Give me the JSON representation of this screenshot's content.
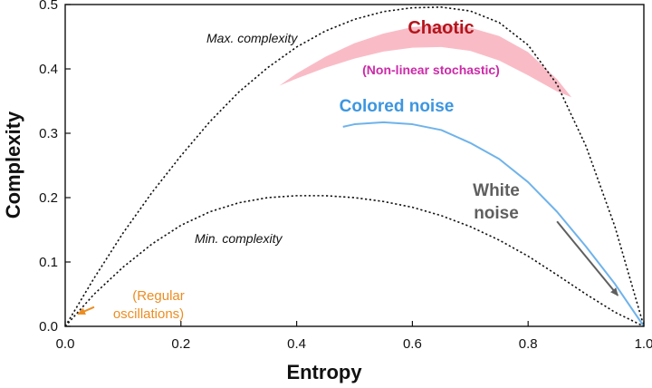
{
  "chart_data": {
    "type": "line",
    "xlabel": "Entropy",
    "ylabel": "Complexity",
    "xlim": [
      0,
      1
    ],
    "ylim": [
      0,
      0.5
    ],
    "xticks": [
      "0.0",
      "0.2",
      "0.4",
      "0.6",
      "0.8",
      "1.0"
    ],
    "yticks": [
      "0.0",
      "0.1",
      "0.2",
      "0.3",
      "0.4",
      "0.5"
    ],
    "grid": false,
    "legend": "none",
    "series": [
      {
        "name": "Max. complexity",
        "style": "dotted",
        "color": "#111111",
        "x": [
          0,
          0.05,
          0.1,
          0.15,
          0.2,
          0.25,
          0.3,
          0.35,
          0.4,
          0.45,
          0.5,
          0.55,
          0.6,
          0.65,
          0.7,
          0.75,
          0.8,
          0.85,
          0.9,
          0.95,
          1.0
        ],
        "y": [
          0,
          0.075,
          0.145,
          0.208,
          0.265,
          0.318,
          0.364,
          0.402,
          0.434,
          0.459,
          0.477,
          0.489,
          0.495,
          0.496,
          0.49,
          0.472,
          0.437,
          0.376,
          0.28,
          0.155,
          0
        ]
      },
      {
        "name": "Min. complexity",
        "style": "dotted",
        "color": "#111111",
        "x": [
          0,
          0.05,
          0.1,
          0.15,
          0.2,
          0.25,
          0.3,
          0.35,
          0.4,
          0.45,
          0.5,
          0.55,
          0.6,
          0.65,
          0.7,
          0.75,
          0.8,
          0.85,
          0.9,
          0.95,
          1.0
        ],
        "y": [
          0,
          0.05,
          0.092,
          0.128,
          0.157,
          0.178,
          0.192,
          0.2,
          0.203,
          0.203,
          0.2,
          0.194,
          0.185,
          0.172,
          0.155,
          0.134,
          0.109,
          0.08,
          0.05,
          0.022,
          0
        ]
      },
      {
        "name": "Colored noise",
        "style": "solid",
        "color": "#6fb3ea",
        "x": [
          0.48,
          0.5,
          0.55,
          0.6,
          0.65,
          0.7,
          0.75,
          0.8,
          0.85,
          0.9,
          0.95,
          1.0
        ],
        "y": [
          0.31,
          0.314,
          0.317,
          0.314,
          0.305,
          0.285,
          0.26,
          0.224,
          0.178,
          0.124,
          0.066,
          0
        ]
      }
    ],
    "regions": [
      {
        "name": "Chaotic",
        "color": "#f9bcc6",
        "x": [
          0.37,
          0.4,
          0.45,
          0.5,
          0.55,
          0.6,
          0.65,
          0.7,
          0.75,
          0.8,
          0.85,
          0.875
        ],
        "upper": [
          0.374,
          0.393,
          0.419,
          0.44,
          0.455,
          0.465,
          0.468,
          0.464,
          0.451,
          0.426,
          0.384,
          0.356
        ],
        "lower": [
          0.374,
          0.385,
          0.402,
          0.416,
          0.427,
          0.433,
          0.434,
          0.428,
          0.413,
          0.39,
          0.365,
          0.356
        ]
      }
    ],
    "annotations": [
      {
        "text": "Max. complexity",
        "color": "#111111",
        "style": "italic"
      },
      {
        "text": "Min. complexity",
        "color": "#111111",
        "style": "italic"
      },
      {
        "text": "Chaotic",
        "color": "#b3151d",
        "style": "bold"
      },
      {
        "text": "(Non-linear stochastic)",
        "color": "#cc2aa8",
        "style": "bold"
      },
      {
        "text": "Colored noise",
        "color": "#3d96e0",
        "style": "bold"
      },
      {
        "text": "White",
        "color": "#5f5f5f",
        "style": "bold"
      },
      {
        "text": "noise",
        "color": "#5f5f5f",
        "style": "bold"
      },
      {
        "text": "(Regular",
        "color": "#ec8d21",
        "style": "normal"
      },
      {
        "text": "oscillations)",
        "color": "#ec8d21",
        "style": "normal"
      }
    ],
    "arrows": [
      {
        "from": [
          0.85,
          0.163
        ],
        "to": [
          0.955,
          0.048
        ],
        "color": "#5f5f5f"
      },
      {
        "from": [
          0.05,
          0.03
        ],
        "to": [
          0.022,
          0.019
        ],
        "color": "#ec8d21"
      }
    ]
  }
}
